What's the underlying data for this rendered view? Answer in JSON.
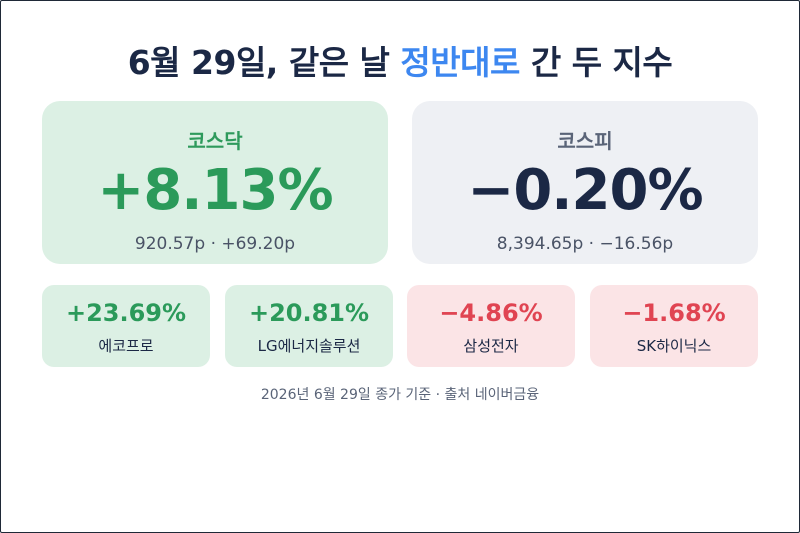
{
  "title": {
    "prefix": "6월 29일, 같은 날 ",
    "highlight": "정반대로",
    "suffix": " 간 두 지수"
  },
  "indices": [
    {
      "name": "코스닥",
      "change_pct": "+8.13%",
      "detail": "920.57p · +69.20p",
      "direction": "up"
    },
    {
      "name": "코스피",
      "change_pct": "−0.20%",
      "detail": "8,394.65p · −16.56p",
      "direction": "down"
    }
  ],
  "stocks": [
    {
      "name": "에코프로",
      "change_pct": "+23.69%",
      "direction": "up"
    },
    {
      "name": "LG에너지솔루션",
      "change_pct": "+20.81%",
      "direction": "up"
    },
    {
      "name": "삼성전자",
      "change_pct": "−4.86%",
      "direction": "down"
    },
    {
      "name": "SK하이닉스",
      "change_pct": "−1.68%",
      "direction": "down"
    }
  ],
  "footnote": "2026년 6월 29일 종가 기준 · 출처 네이버금융",
  "colors": {
    "up": "#2b9a5a",
    "down_red": "#e04452",
    "navy": "#1b2845",
    "highlight": "#3d87f0"
  }
}
